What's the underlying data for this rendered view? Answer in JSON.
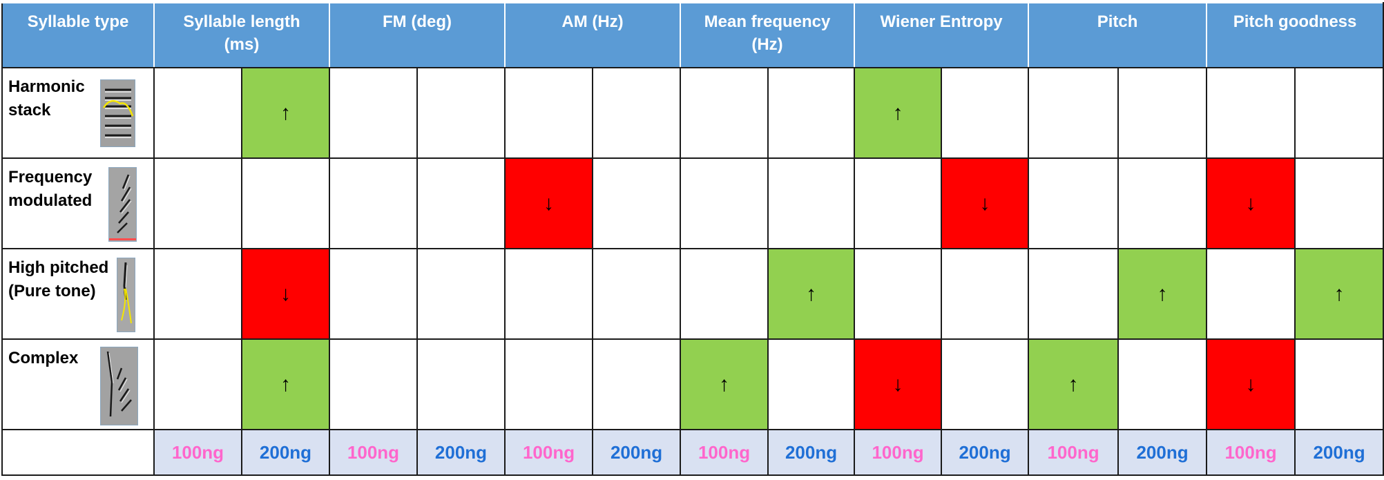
{
  "colors": {
    "header_bg": "#5b9bd5",
    "up": "#92d050",
    "down": "#ff0000",
    "dose_row_bg": "#d9e1f2",
    "dose_100": "#ff66cc",
    "dose_200": "#1f6fd6"
  },
  "header": {
    "syllable_type": "Syllable type",
    "features": [
      "Syllable length\n(ms)",
      "FM (deg)",
      "AM (Hz)",
      "Mean frequency\n(Hz)",
      "Wiener Entropy",
      "Pitch",
      "Pitch goodness"
    ]
  },
  "rows": [
    {
      "label": "Harmonic\nstack",
      "icon": "harmonic-stack-spectrogram-icon",
      "cells": [
        "",
        "↑",
        "",
        "",
        "",
        "",
        "",
        "",
        "↑",
        "",
        "",
        "",
        "",
        ""
      ]
    },
    {
      "label": "Frequency\nmodulated",
      "icon": "frequency-modulated-spectrogram-icon",
      "cells": [
        "",
        "",
        "",
        "",
        "↓",
        "",
        "",
        "",
        "",
        "↓",
        "",
        "",
        "↓",
        ""
      ]
    },
    {
      "label": "High pitched\n(Pure tone)",
      "icon": "pure-tone-spectrogram-icon",
      "cells": [
        "",
        "↓",
        "",
        "",
        "",
        "",
        "",
        "↑",
        "",
        "",
        "",
        "↑",
        "",
        "↑"
      ]
    },
    {
      "label": "Complex",
      "icon": "complex-spectrogram-icon",
      "cells": [
        "",
        "↑",
        "",
        "",
        "",
        "",
        "↑",
        "",
        "↓",
        "",
        "↑",
        "",
        "↓",
        ""
      ]
    }
  ],
  "doses": [
    "100ng",
    "200ng"
  ],
  "arrows": {
    "up": "↑",
    "down": "↓"
  }
}
